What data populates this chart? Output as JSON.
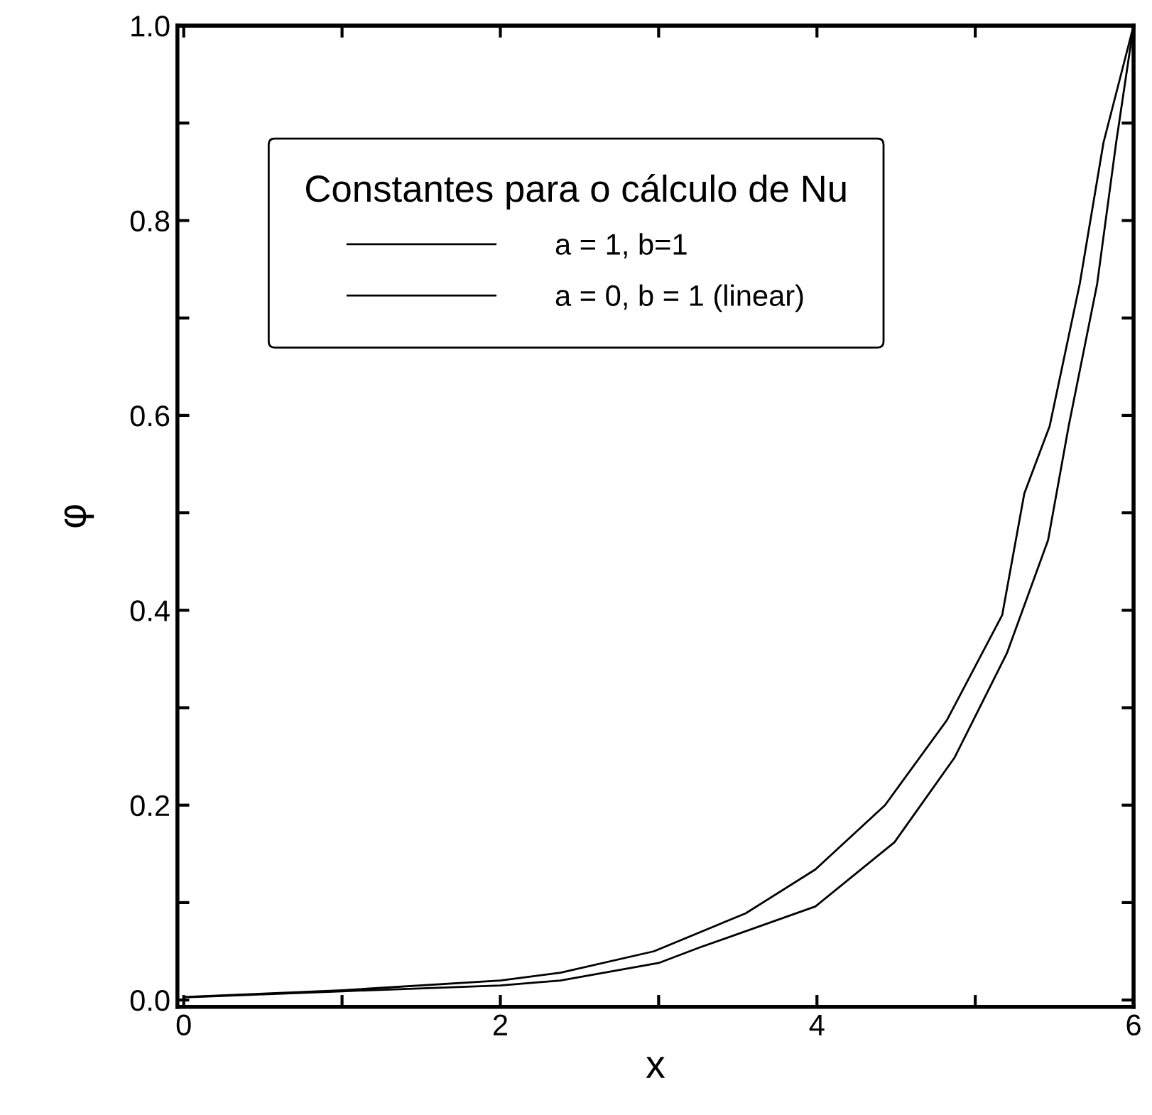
{
  "chart_data": {
    "type": "line",
    "xlabel": "x",
    "ylabel": "φ",
    "legend_title": "Constantes para o cálculo de Nu",
    "legend": "top left",
    "grid": false,
    "marker": "none",
    "line_style": "solid",
    "xlim": [
      -0.04,
      6
    ],
    "ylim": [
      -0.007,
      1.0
    ],
    "xticks": [
      0,
      {
        "value": 1,
        "label": null
      },
      2,
      {
        "value": 3,
        "label": null
      },
      4,
      {
        "value": 5,
        "label": null
      },
      6
    ],
    "yticks": [
      "0.0",
      {
        "value": 0.1,
        "label": null
      },
      0.2,
      {
        "value": 0.3,
        "label": null
      },
      0.4,
      {
        "value": 0.5,
        "label": null
      },
      0.6,
      {
        "value": 0.7,
        "label": null
      },
      0.8,
      {
        "value": 0.9,
        "label": null
      },
      "1.0"
    ],
    "series": [
      {
        "name": "a = 1, b=1",
        "color": "#000000",
        "x": [
          0,
          1,
          2,
          2.38,
          2.97,
          3.55,
          3.99,
          4.43,
          4.82,
          5.17,
          5.31,
          5.47,
          5.66,
          5.81,
          6
        ],
        "values": [
          0.003,
          0.01,
          0.02,
          0.028,
          0.05,
          0.089,
          0.134,
          0.2,
          0.287,
          0.395,
          0.52,
          0.589,
          0.735,
          0.88,
          1.0
        ]
      },
      {
        "name": "a = 0, b = 1 (linear)",
        "color": "#000000",
        "x": [
          0.04,
          1,
          2,
          2.38,
          3,
          3.26,
          3.99,
          4.49,
          4.87,
          5.2,
          5.46,
          5.59,
          5.77,
          5.89,
          6
        ],
        "values": [
          0.003,
          0.009,
          0.015,
          0.02,
          0.038,
          0.054,
          0.096,
          0.162,
          0.249,
          0.356,
          0.472,
          0.589,
          0.735,
          0.88,
          1.0
        ]
      }
    ]
  }
}
